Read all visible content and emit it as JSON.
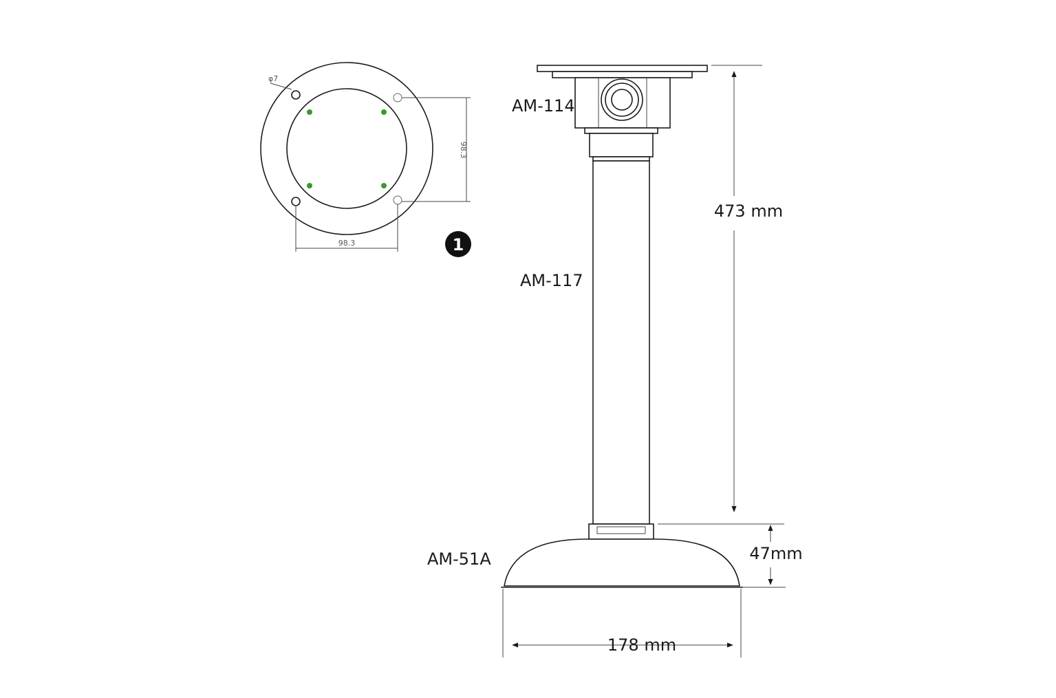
{
  "parts": {
    "top_mount": "AM-114",
    "pole": "AM-117",
    "base": "AM-51A"
  },
  "dimensions": {
    "height": "473 mm",
    "base_height": "47mm",
    "base_width": "178 mm",
    "hole_spacing_h": "98.3",
    "hole_spacing_v": "98.3",
    "hole_diameter": "φ7"
  },
  "badge": "1",
  "colors": {
    "line": "#1a1a1a",
    "screw": "#3a9a2a",
    "badge_bg": "#111111"
  }
}
